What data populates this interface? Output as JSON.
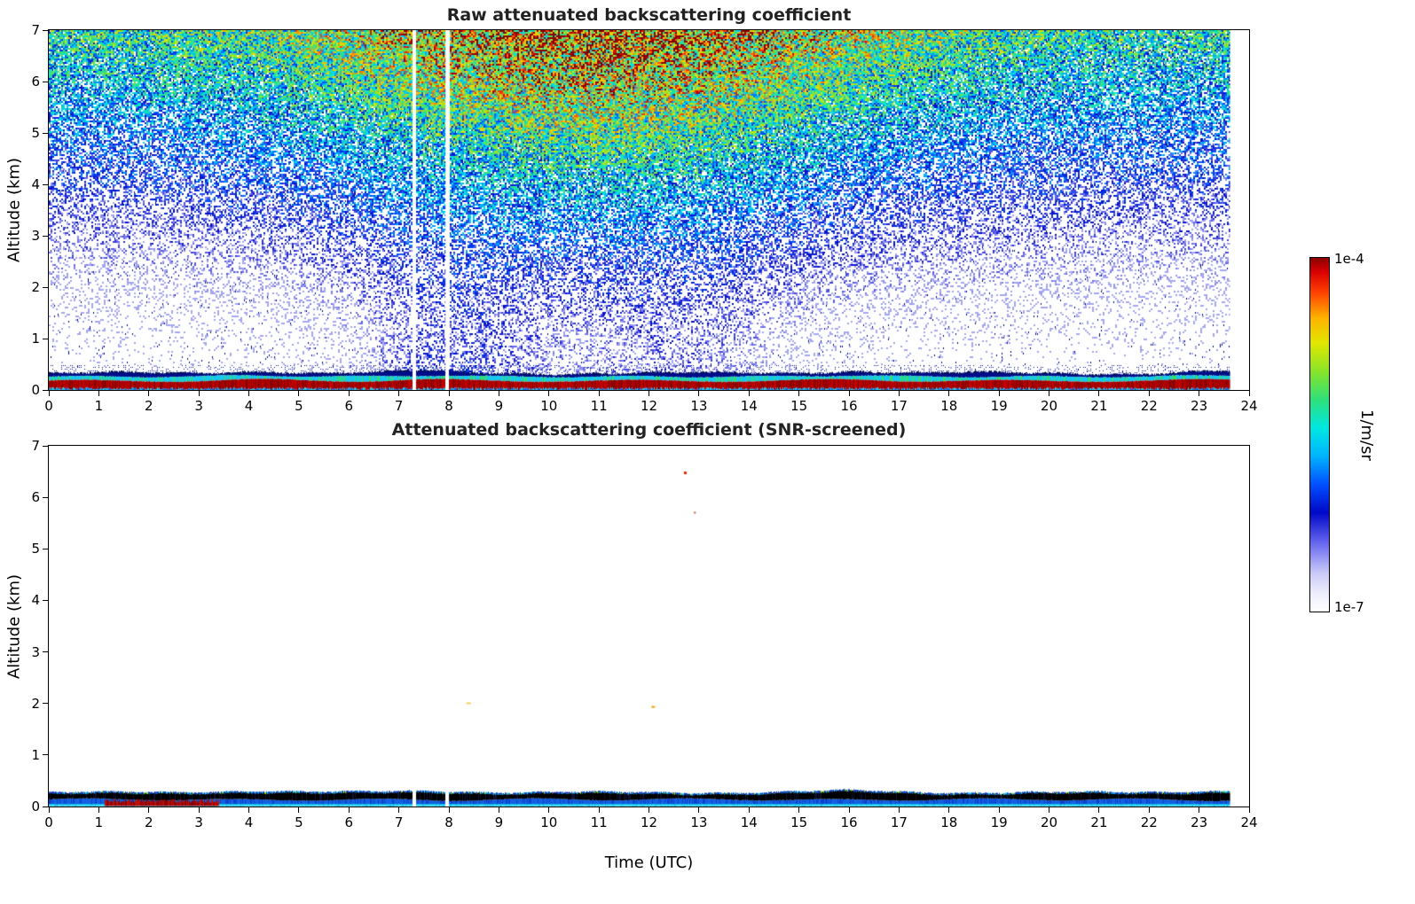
{
  "figure": {
    "panels": [
      {
        "id": "raw",
        "title": "Raw attenuated backscattering coefficient",
        "xlabel": "",
        "ylabel": "Altitude (km)",
        "xlim": [
          0,
          24
        ],
        "ylim": [
          0,
          7
        ],
        "xticks": [
          0,
          1,
          2,
          3,
          4,
          5,
          6,
          7,
          8,
          9,
          10,
          11,
          12,
          13,
          14,
          15,
          16,
          17,
          18,
          19,
          20,
          21,
          22,
          23,
          24
        ],
        "yticks": [
          0,
          1,
          2,
          3,
          4,
          5,
          6,
          7
        ]
      },
      {
        "id": "screened",
        "title": "Attenuated backscattering coefficient (SNR-screened)",
        "xlabel": "Time (UTC)",
        "ylabel": "Altitude (km)",
        "xlim": [
          0,
          24
        ],
        "ylim": [
          0,
          7
        ],
        "xticks": [
          0,
          1,
          2,
          3,
          4,
          5,
          6,
          7,
          8,
          9,
          10,
          11,
          12,
          13,
          14,
          15,
          16,
          17,
          18,
          19,
          20,
          21,
          22,
          23,
          24
        ],
        "yticks": [
          0,
          1,
          2,
          3,
          4,
          5,
          6,
          7
        ]
      }
    ],
    "colorbar": {
      "label_top": "1e-4",
      "label_bottom": "1e-7",
      "unit": "1/m/sr",
      "scale": "log",
      "stops": [
        [
          0.0,
          "#ffffff"
        ],
        [
          0.05,
          "#eeeefc"
        ],
        [
          0.11,
          "#c9c9f7"
        ],
        [
          0.19,
          "#6b6bf0"
        ],
        [
          0.28,
          "#0008c8"
        ],
        [
          0.36,
          "#0050ff"
        ],
        [
          0.44,
          "#00b4ff"
        ],
        [
          0.52,
          "#00e8e0"
        ],
        [
          0.6,
          "#2fe07a"
        ],
        [
          0.68,
          "#8ae428"
        ],
        [
          0.76,
          "#e2e600"
        ],
        [
          0.83,
          "#ffb300"
        ],
        [
          0.9,
          "#ff4400"
        ],
        [
          0.96,
          "#d90000"
        ],
        [
          1.0,
          "#8b0000"
        ]
      ]
    }
  },
  "chart_data": [
    {
      "type": "heatmap",
      "title": "Raw attenuated backscattering coefficient",
      "xlabel": "Time (UTC)",
      "ylabel": "Altitude (km)",
      "x_range": [
        0,
        24
      ],
      "y_range": [
        0,
        7
      ],
      "value_range_1_per_m_sr": [
        1e-07,
        0.0001
      ],
      "value_scale": "log",
      "legend_position": "right colorbar",
      "grid": false,
      "description": "Ceilometer raw attenuated backscatter: solar-background speckle noise fills the troposphere, growing with altitude and peaking near local noon (orange/red at 5-7 km around 9-14 UTC, green/yellow at night); sparse blue/cyan noise at low altitude; persistent surface aerosol layer below ~0.35 km (dark-red band capped by cyan and a dark-navy jagged line) for the whole day; data end ~23.6 UTC.",
      "noise": {
        "solar_peak_utc": 11,
        "solar_width_h": 5.5,
        "night_floor": 0.6,
        "altitude_exponent": 1.25,
        "low_level_plumes": [
          {
            "center_utc": 8.0,
            "width_h": 2.0,
            "amp": 0.28,
            "alt_scale_km": 1.6
          },
          {
            "center_utc": 12.5,
            "width_h": 2.5,
            "amp": 0.2,
            "alt_scale_km": 1.8
          }
        ]
      },
      "surface_layer": {
        "red_top_km": 0.17,
        "cyan_top_km": 0.25,
        "navy_top_km": 0.31,
        "bumps_utc": [
          4.2,
          7.6,
          16.0,
          23.4
        ]
      },
      "data_gaps_utc": [
        7.3,
        7.95
      ],
      "data_end_utc": 23.62
    },
    {
      "type": "heatmap",
      "title": "Attenuated backscattering coefficient (SNR-screened)",
      "xlabel": "Time (UTC)",
      "ylabel": "Altitude (km)",
      "x_range": [
        0,
        24
      ],
      "y_range": [
        0,
        7
      ],
      "value_range_1_per_m_sr": [
        1e-07,
        0.0001
      ],
      "value_scale": "log",
      "grid": false,
      "description": "Same field after SNR screening: only the surface aerosol layer below ~0.3 km survives (cyan/blue layer capped by a black high-backscatter line), dark-red near-ground patch between ~1-3.4 UTC, a few isolated residual specks aloft; data end ~23.6 UTC.",
      "surface_layer": {
        "black_top_km": 0.25,
        "black_bottom_km": 0.13,
        "blue_top_km": 0.13,
        "cyan_top_km": 0.05,
        "red_patch_utc": [
          1.1,
          3.4
        ],
        "red_patch_top_km": 0.11,
        "bumps_utc": [
          4.0,
          7.6,
          16.0,
          23.4
        ]
      },
      "residual_specks": [
        {
          "utc": 12.7,
          "alt_km": 6.5,
          "color": "#ee2200",
          "w": 3,
          "h": 3
        },
        {
          "utc": 12.9,
          "alt_km": 5.72,
          "color": "#cc5533",
          "w": 2,
          "h": 2
        },
        {
          "utc": 8.35,
          "alt_km": 2.02,
          "color": "#ffcc55",
          "w": 5,
          "h": 2
        },
        {
          "utc": 12.05,
          "alt_km": 1.95,
          "color": "#ff9900",
          "w": 4,
          "h": 2
        }
      ],
      "data_gaps_utc": [
        7.3,
        7.95
      ],
      "data_end_utc": 23.62
    }
  ]
}
